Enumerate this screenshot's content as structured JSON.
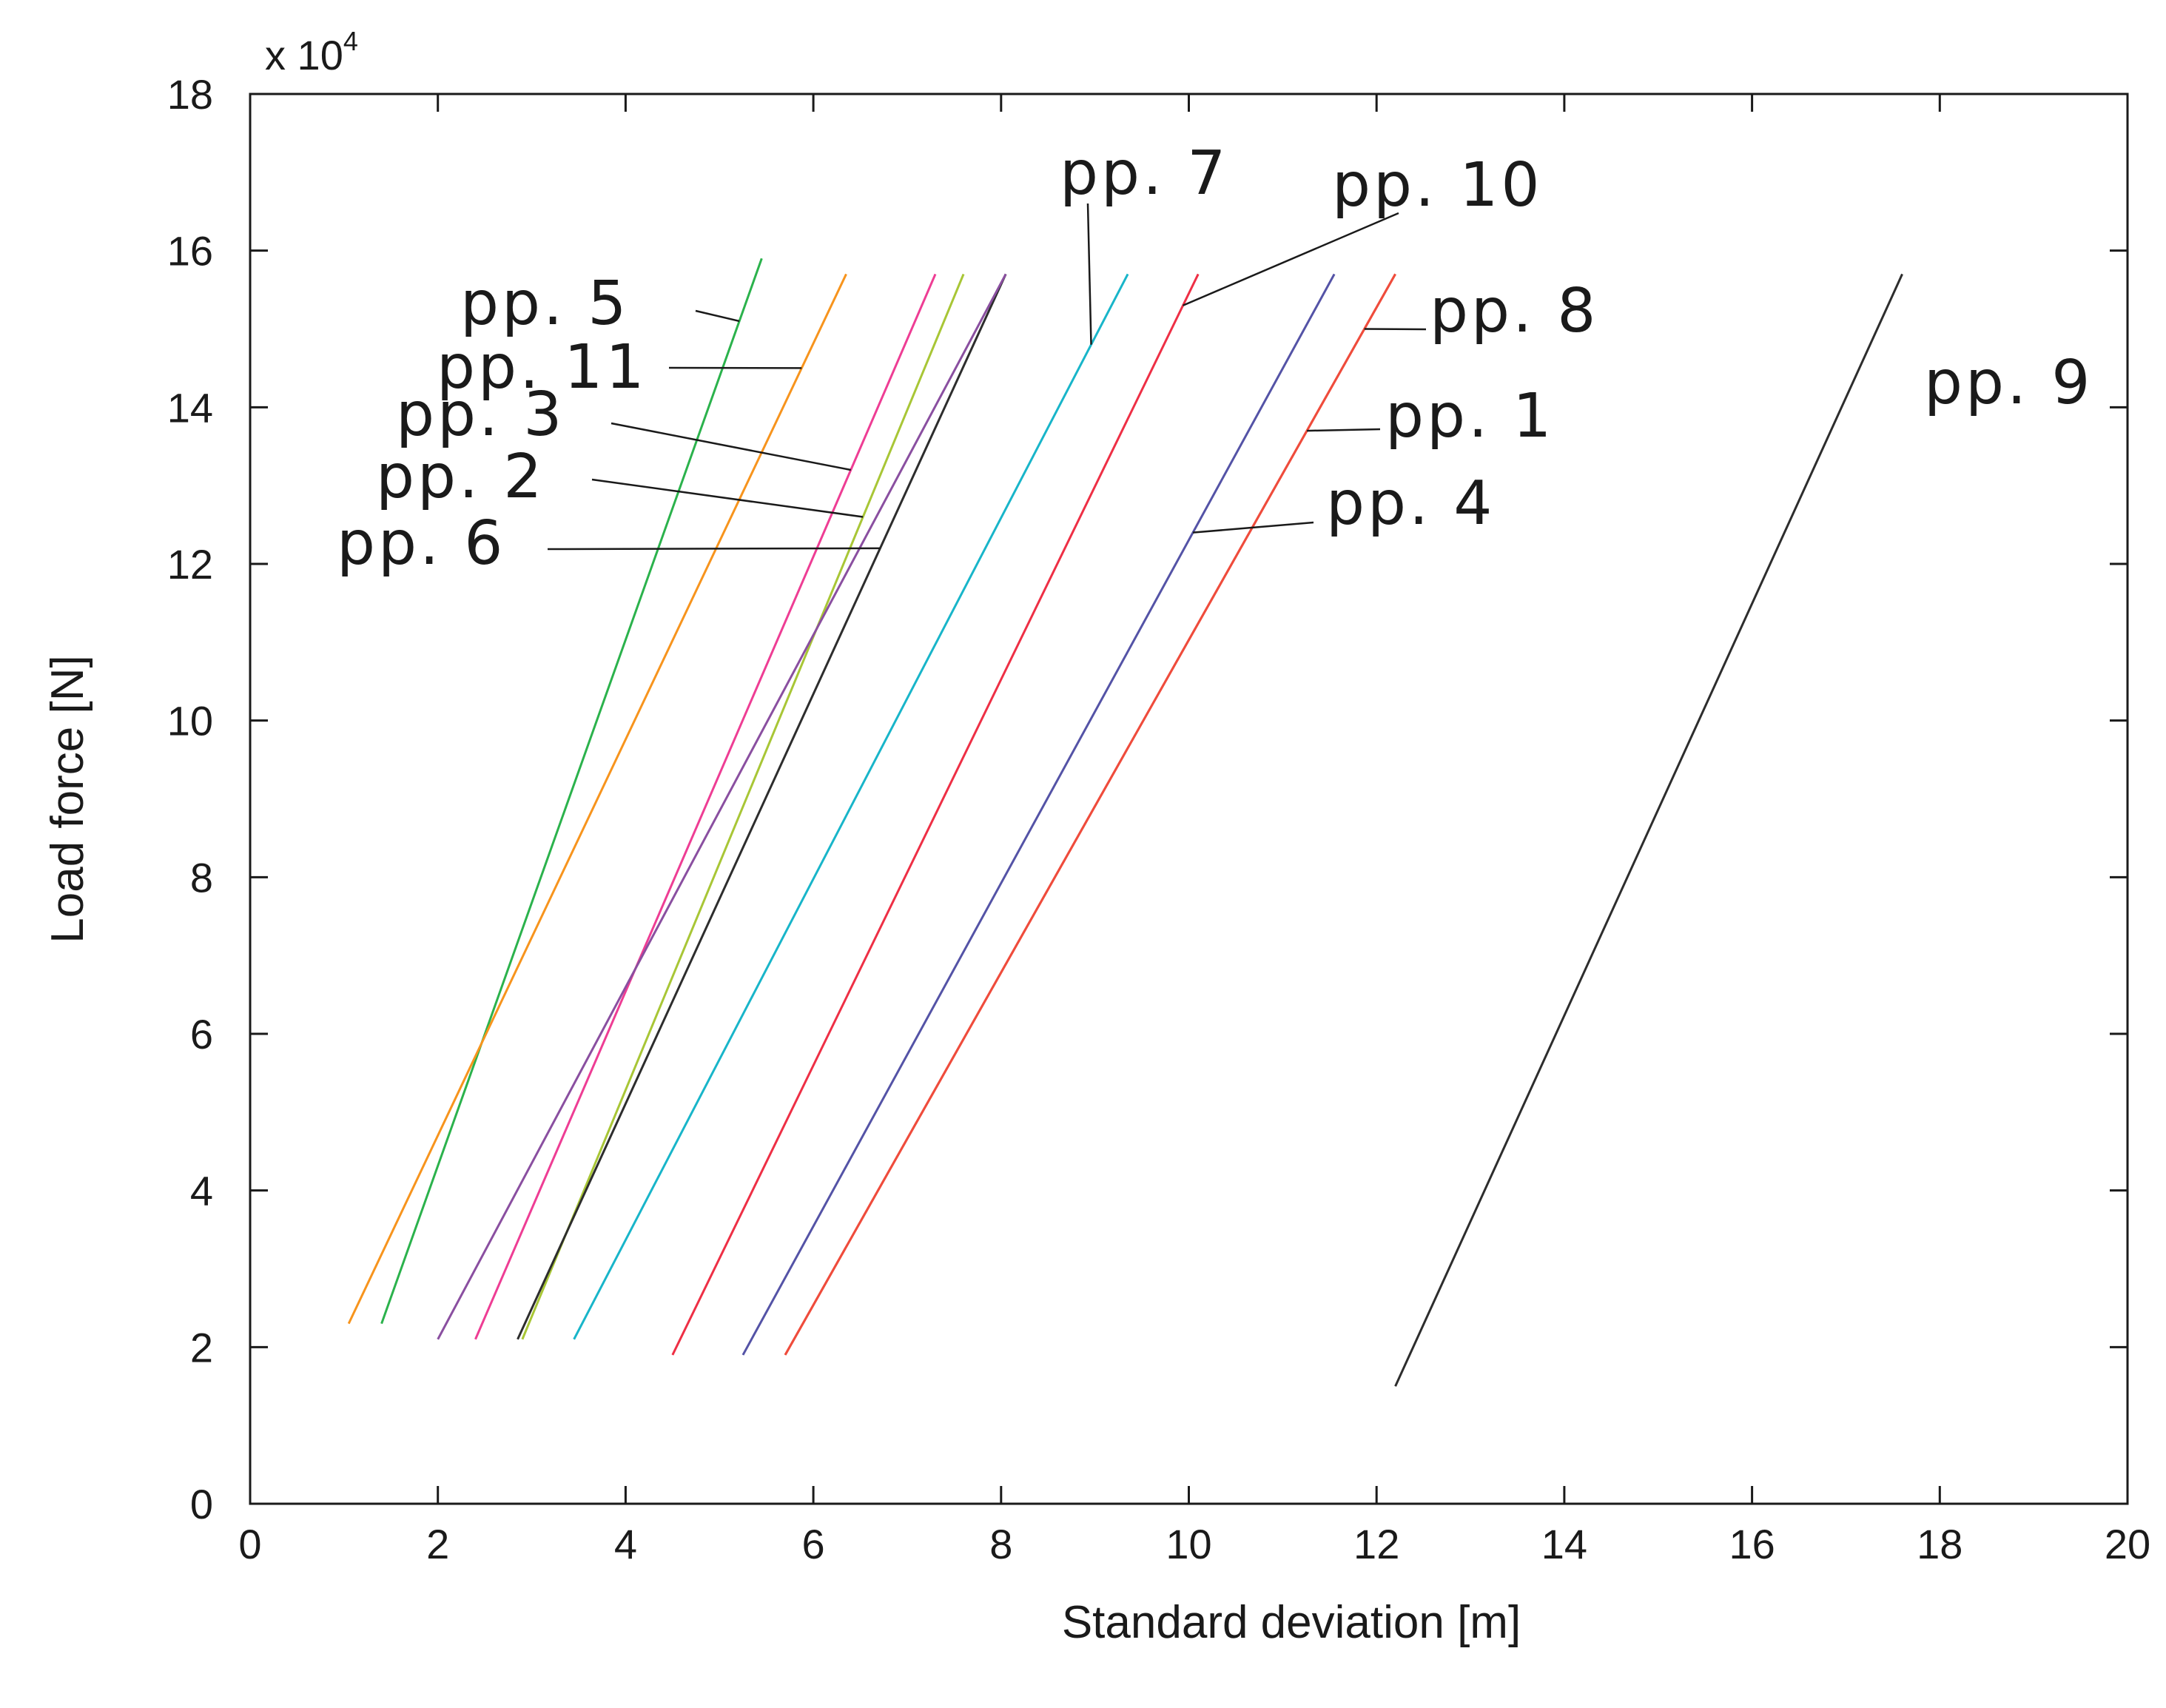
{
  "chart_data": {
    "type": "line",
    "title": "",
    "xlabel": "Standard deviation [m]",
    "ylabel": "Load force [N]",
    "y_multiplier_label": "x 10",
    "y_multiplier_exponent": "4",
    "xlim": [
      0,
      20
    ],
    "ylim": [
      0,
      18
    ],
    "xticks": [
      0,
      2,
      4,
      6,
      8,
      10,
      12,
      14,
      16,
      18,
      20
    ],
    "yticks": [
      0,
      2,
      4,
      6,
      8,
      10,
      12,
      14,
      16,
      18
    ],
    "grid": false,
    "series": [
      {
        "name": "pp. 1",
        "color": "#ef4c3c",
        "x": [
          5.7,
          12.2
        ],
        "y": [
          1.9,
          15.7
        ]
      },
      {
        "name": "pp. 2",
        "color": "#a8c636",
        "x": [
          2.9,
          7.6
        ],
        "y": [
          2.1,
          15.7
        ]
      },
      {
        "name": "pp. 3",
        "color": "#ee3d94",
        "x": [
          2.4,
          7.3
        ],
        "y": [
          2.1,
          15.7
        ]
      },
      {
        "name": "pp. 4",
        "color": "#5453a6",
        "x": [
          5.25,
          11.55
        ],
        "y": [
          1.9,
          15.7
        ]
      },
      {
        "name": "pp. 5",
        "color": "#2bb24c",
        "x": [
          1.4,
          5.45
        ],
        "y": [
          2.3,
          15.9
        ]
      },
      {
        "name": "pp. 6",
        "color": "#2d2d2d",
        "x": [
          2.85,
          8.05
        ],
        "y": [
          2.1,
          15.7
        ]
      },
      {
        "name": "pp. 7",
        "color": "#18b5c9",
        "x": [
          3.45,
          9.35
        ],
        "y": [
          2.1,
          15.7
        ]
      },
      {
        "name": "pp. 8",
        "color": "#ef4c3c",
        "x": [
          5.7,
          12.2
        ],
        "y": [
          1.9,
          15.7
        ]
      },
      {
        "name": "pp. 9",
        "color": "#2d2d2d",
        "x": [
          12.2,
          17.6
        ],
        "y": [
          1.5,
          15.7
        ]
      },
      {
        "name": "pp. 10",
        "color": "#ee2f45",
        "x": [
          4.5,
          10.1
        ],
        "y": [
          1.9,
          15.7
        ]
      },
      {
        "name": "pp. 11",
        "color": "#f7941d",
        "x": [
          1.05,
          6.35
        ],
        "y": [
          2.3,
          15.7
        ]
      },
      {
        "name": "",
        "color": "#8a4fa0",
        "x": [
          2.0,
          8.05
        ],
        "y": [
          2.1,
          15.7
        ]
      }
    ],
    "annotations": [
      {
        "text": "pp. 7",
        "series": "pp. 7"
      },
      {
        "text": "pp. 10",
        "series": "pp. 10"
      },
      {
        "text": "pp. 5",
        "series": "pp. 5"
      },
      {
        "text": "pp. 8",
        "series": "pp. 8"
      },
      {
        "text": "pp. 11",
        "series": "pp. 11"
      },
      {
        "text": "pp. 9",
        "series": "pp. 9"
      },
      {
        "text": "pp. 3",
        "series": "pp. 3"
      },
      {
        "text": "pp. 1",
        "series": "pp. 1"
      },
      {
        "text": "pp. 2",
        "series": "pp. 2"
      },
      {
        "text": "pp. 4",
        "series": "pp. 4"
      },
      {
        "text": "pp. 6",
        "series": "pp. 6"
      }
    ]
  }
}
